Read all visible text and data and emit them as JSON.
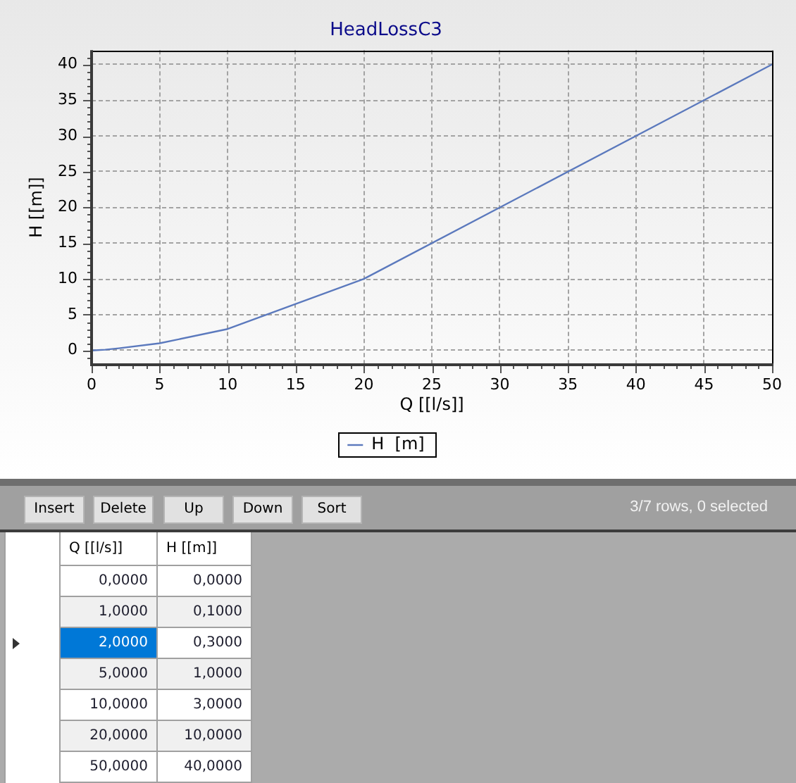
{
  "chart_data": {
    "type": "line",
    "title": "HeadLossC3",
    "xlabel": "Q [[l/s]]",
    "ylabel": "H [[m]]",
    "x": [
      0,
      1,
      2,
      5,
      10,
      20,
      50
    ],
    "series": [
      {
        "name": "H  [m]",
        "color": "#5b79bd",
        "values": [
          0,
          0.1,
          0.3,
          1,
          3,
          10,
          40
        ]
      }
    ],
    "xlim": [
      0,
      50
    ],
    "xticks": [
      0,
      {
        "value": 1,
        "label": null
      },
      {
        "value": 2,
        "label": null
      },
      {
        "value": 3,
        "label": null
      },
      {
        "value": 4,
        "label": null
      },
      5,
      {
        "value": 6,
        "label": null
      },
      {
        "value": 7,
        "label": null
      },
      {
        "value": 8,
        "label": null
      },
      {
        "value": 9,
        "label": null
      },
      10,
      {
        "value": 11,
        "label": null
      },
      {
        "value": 12,
        "label": null
      },
      {
        "value": 13,
        "label": null
      },
      {
        "value": 14,
        "label": null
      },
      15,
      {
        "value": 16,
        "label": null
      },
      {
        "value": 17,
        "label": null
      },
      {
        "value": 18,
        "label": null
      },
      {
        "value": 19,
        "label": null
      },
      20,
      {
        "value": 21,
        "label": null
      },
      {
        "value": 22,
        "label": null
      },
      {
        "value": 23,
        "label": null
      },
      {
        "value": 24,
        "label": null
      },
      25,
      {
        "value": 26,
        "label": null
      },
      {
        "value": 27,
        "label": null
      },
      {
        "value": 28,
        "label": null
      },
      {
        "value": 29,
        "label": null
      },
      30,
      {
        "value": 31,
        "label": null
      },
      {
        "value": 32,
        "label": null
      },
      {
        "value": 33,
        "label": null
      },
      {
        "value": 34,
        "label": null
      },
      35,
      {
        "value": 36,
        "label": null
      },
      {
        "value": 37,
        "label": null
      },
      {
        "value": 38,
        "label": null
      },
      {
        "value": 39,
        "label": null
      },
      40,
      {
        "value": 41,
        "label": null
      },
      {
        "value": 42,
        "label": null
      },
      {
        "value": 43,
        "label": null
      },
      {
        "value": 44,
        "label": null
      },
      45,
      {
        "value": 46,
        "label": null
      },
      {
        "value": 47,
        "label": null
      },
      {
        "value": 48,
        "label": null
      },
      {
        "value": 49,
        "label": null
      },
      50
    ],
    "ylim": [
      -2,
      42
    ],
    "yticks": [
      {
        "value": -1,
        "label": null
      },
      0,
      {
        "value": 1,
        "label": null
      },
      {
        "value": 2,
        "label": null
      },
      {
        "value": 3,
        "label": null
      },
      {
        "value": 4,
        "label": null
      },
      5,
      {
        "value": 6,
        "label": null
      },
      {
        "value": 7,
        "label": null
      },
      {
        "value": 8,
        "label": null
      },
      {
        "value": 9,
        "label": null
      },
      10,
      {
        "value": 11,
        "label": null
      },
      {
        "value": 12,
        "label": null
      },
      {
        "value": 13,
        "label": null
      },
      {
        "value": 14,
        "label": null
      },
      15,
      {
        "value": 16,
        "label": null
      },
      {
        "value": 17,
        "label": null
      },
      {
        "value": 18,
        "label": null
      },
      {
        "value": 19,
        "label": null
      },
      20,
      {
        "value": 21,
        "label": null
      },
      {
        "value": 22,
        "label": null
      },
      {
        "value": 23,
        "label": null
      },
      {
        "value": 24,
        "label": null
      },
      25,
      {
        "value": 26,
        "label": null
      },
      {
        "value": 27,
        "label": null
      },
      {
        "value": 28,
        "label": null
      },
      {
        "value": 29,
        "label": null
      },
      30,
      {
        "value": 31,
        "label": null
      },
      {
        "value": 32,
        "label": null
      },
      {
        "value": 33,
        "label": null
      },
      {
        "value": 34,
        "label": null
      },
      35,
      {
        "value": 36,
        "label": null
      },
      {
        "value": 37,
        "label": null
      },
      {
        "value": 38,
        "label": null
      },
      {
        "value": 39,
        "label": null
      },
      40,
      {
        "value": 41,
        "label": null
      }
    ],
    "grid": true,
    "legend": "bottom",
    "annotations": [
      "Insert",
      "Delete",
      "Up",
      "Down",
      "Sort",
      "3/7 rows, 0 selected",
      "0,0000",
      "0,0000",
      "1,0000",
      "0,1000",
      "2,0000",
      "0,3000",
      "5,0000",
      "1,0000",
      "10,0000",
      "3,0000",
      "20,0000",
      "10,0000",
      "50,0000",
      "40,0000"
    ]
  }
}
